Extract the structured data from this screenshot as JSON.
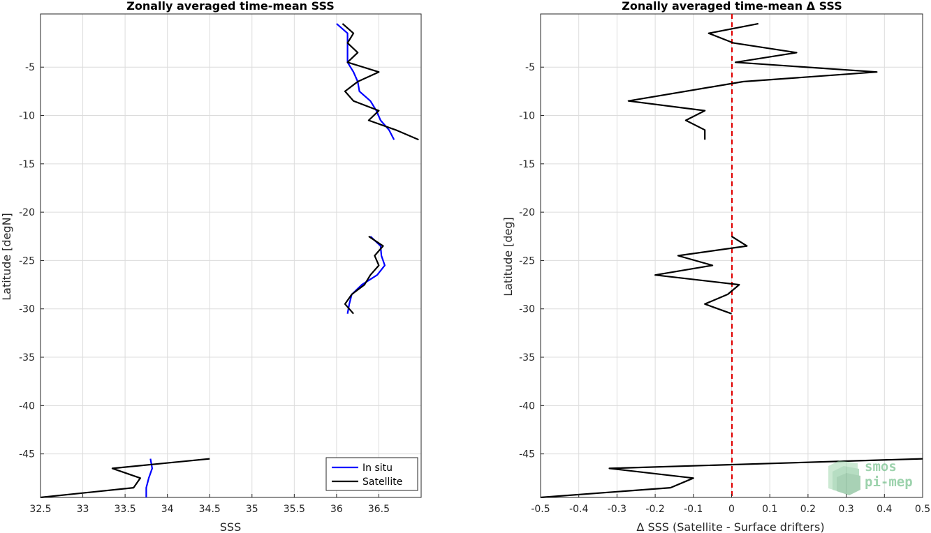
{
  "chart_data": [
    {
      "type": "line",
      "title": "Zonally averaged time-mean SSS",
      "xlabel": "SSS",
      "ylabel": "Latitude [degN]",
      "xlim": [
        32.5,
        37.0
      ],
      "ylim": [
        -49.5,
        0.5
      ],
      "xticks": [
        32.5,
        33,
        33.5,
        34,
        34.5,
        35,
        35.5,
        36,
        36.5
      ],
      "xtick_labels": [
        "32.5",
        "33",
        "33.5",
        "34",
        "34.5",
        "35",
        "35.5",
        "36",
        "36.5"
      ],
      "yticks": [
        -45,
        -40,
        -35,
        -30,
        -25,
        -20,
        -15,
        -10,
        -5
      ],
      "ytick_labels": [
        "-45",
        "-40",
        "-35",
        "-30",
        "-25",
        "-20",
        "-15",
        "-10",
        "-5"
      ],
      "grid": true,
      "legend": "bottom-right",
      "series": [
        {
          "name": "In situ",
          "color": "#0000ff",
          "segments": [
            [
              [
                36.0,
                -0.5
              ],
              [
                36.13,
                -1.5
              ],
              [
                36.13,
                -2.5
              ],
              [
                36.13,
                -3.5
              ],
              [
                36.13,
                -4.5
              ],
              [
                36.2,
                -5.5
              ],
              [
                36.25,
                -6.5
              ],
              [
                36.27,
                -7.5
              ],
              [
                36.4,
                -8.5
              ],
              [
                36.47,
                -9.5
              ],
              [
                36.52,
                -10.5
              ],
              [
                36.62,
                -11.5
              ],
              [
                36.68,
                -12.5
              ]
            ],
            [
              [
                36.4,
                -22.5
              ],
              [
                36.52,
                -23.5
              ],
              [
                36.53,
                -24.5
              ],
              [
                36.57,
                -25.5
              ],
              [
                36.48,
                -26.5
              ],
              [
                36.3,
                -27.5
              ],
              [
                36.18,
                -28.5
              ],
              [
                36.15,
                -29.5
              ],
              [
                36.13,
                -30.5
              ]
            ],
            [
              [
                33.8,
                -45.5
              ],
              [
                33.82,
                -46.5
              ],
              [
                33.78,
                -47.5
              ],
              [
                33.75,
                -48.5
              ],
              [
                33.75,
                -49.5
              ]
            ]
          ]
        },
        {
          "name": "Satellite",
          "color": "#000000",
          "segments": [
            [
              [
                36.07,
                -0.5
              ],
              [
                36.2,
                -1.5
              ],
              [
                36.13,
                -2.5
              ],
              [
                36.25,
                -3.5
              ],
              [
                36.13,
                -4.5
              ],
              [
                36.5,
                -5.5
              ],
              [
                36.25,
                -6.5
              ],
              [
                36.1,
                -7.5
              ],
              [
                36.2,
                -8.5
              ],
              [
                36.5,
                -9.5
              ],
              [
                36.38,
                -10.5
              ],
              [
                36.7,
                -11.5
              ],
              [
                36.97,
                -12.5
              ]
            ],
            [
              [
                36.38,
                -22.5
              ],
              [
                36.55,
                -23.5
              ],
              [
                36.45,
                -24.5
              ],
              [
                36.5,
                -25.5
              ],
              [
                36.4,
                -26.5
              ],
              [
                36.33,
                -27.5
              ],
              [
                36.18,
                -28.5
              ],
              [
                36.1,
                -29.5
              ],
              [
                36.2,
                -30.5
              ]
            ],
            [
              [
                34.5,
                -45.5
              ],
              [
                33.35,
                -46.5
              ],
              [
                33.68,
                -47.5
              ],
              [
                33.6,
                -48.5
              ],
              [
                32.5,
                -49.5
              ]
            ]
          ]
        }
      ]
    },
    {
      "type": "line",
      "title": "Zonally averaged time-mean Δ SSS",
      "xlabel": "Δ SSS (Satellite - Surface drifters)",
      "ylabel": "Latitude [deg]",
      "xlim": [
        -0.5,
        0.5
      ],
      "ylim": [
        -49.5,
        0.5
      ],
      "xticks": [
        -0.5,
        -0.4,
        -0.3,
        -0.2,
        -0.1,
        0,
        0.1,
        0.2,
        0.3,
        0.4,
        0.5
      ],
      "xtick_labels": [
        "-0.5",
        "-0.4",
        "-0.3",
        "-0.2",
        "-0.1",
        "0",
        "0.1",
        "0.2",
        "0.3",
        "0.4",
        "0.5"
      ],
      "yticks": [
        -45,
        -40,
        -35,
        -30,
        -25,
        -20,
        -15,
        -10,
        -5
      ],
      "ytick_labels": [
        "-45",
        "-40",
        "-35",
        "-30",
        "-25",
        "-20",
        "-15",
        "-10",
        "-5"
      ],
      "grid": true,
      "reference_line": {
        "x": 0,
        "color": "#e00000",
        "style": "dashed"
      },
      "series": [
        {
          "color": "#000000",
          "segments": [
            [
              [
                0.07,
                -0.5
              ],
              [
                -0.06,
                -1.5
              ],
              [
                0.005,
                -2.5
              ],
              [
                0.17,
                -3.5
              ],
              [
                0.01,
                -4.5
              ],
              [
                0.38,
                -5.5
              ],
              [
                0.03,
                -6.5
              ],
              [
                -0.27,
                -8.5
              ],
              [
                -0.07,
                -9.5
              ],
              [
                -0.12,
                -10.5
              ],
              [
                -0.07,
                -11.5
              ],
              [
                -0.07,
                -12.5
              ]
            ],
            [
              [
                0.0,
                -22.5
              ],
              [
                0.04,
                -23.5
              ],
              [
                -0.14,
                -24.5
              ],
              [
                -0.05,
                -25.5
              ],
              [
                -0.2,
                -26.5
              ],
              [
                0.02,
                -27.5
              ],
              [
                -0.01,
                -28.5
              ],
              [
                -0.07,
                -29.5
              ],
              [
                0.0,
                -30.5
              ]
            ],
            [
              [
                0.5,
                -45.5
              ],
              [
                -0.32,
                -46.5
              ],
              [
                -0.1,
                -47.5
              ],
              [
                -0.16,
                -48.5
              ],
              [
                -0.5,
                -49.5
              ]
            ]
          ]
        }
      ]
    }
  ],
  "legend": {
    "items": [
      {
        "label": "In situ",
        "color": "#0000ff"
      },
      {
        "label": "Satellite",
        "color": "#000000"
      }
    ]
  },
  "logo": {
    "line1": "smos",
    "line2": "pi-mep"
  }
}
